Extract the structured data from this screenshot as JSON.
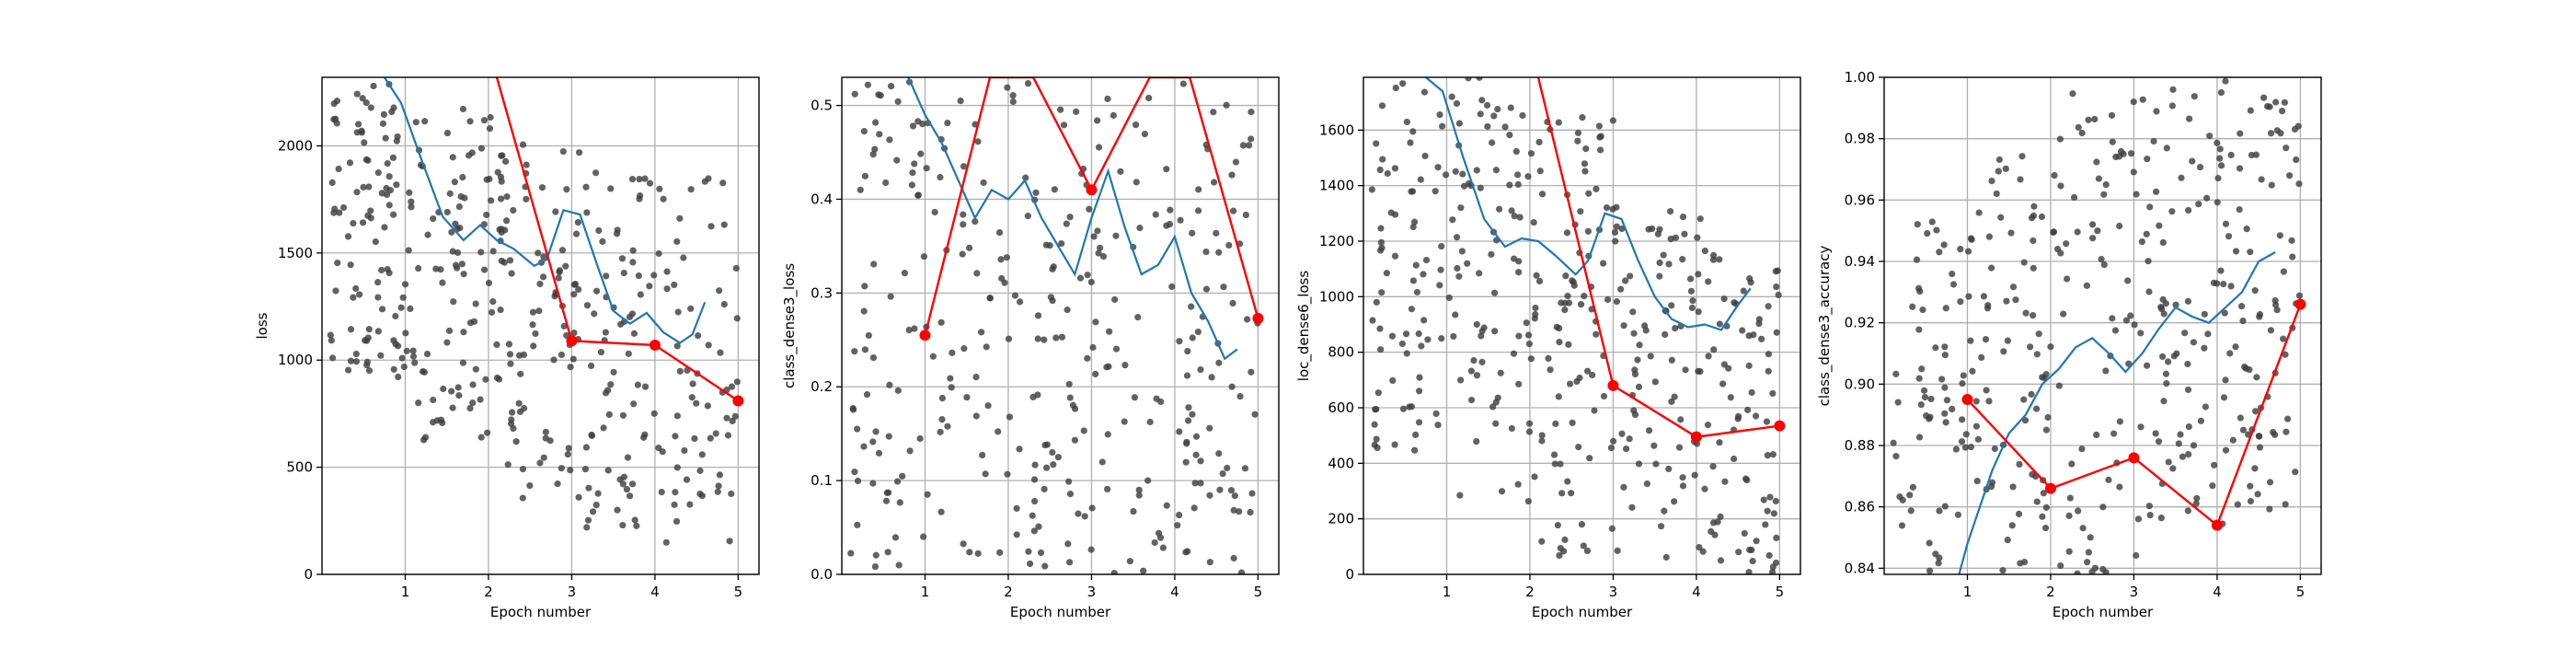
{
  "figure": {
    "background": "#ffffff",
    "colors": {
      "scatter": "#404040",
      "smoothed": "#1f77b4",
      "epoch": "#ff0000",
      "grid": "#b0b0b0",
      "axis": "#000000"
    }
  },
  "chart_data": [
    {
      "type": "line",
      "xlabel": "Epoch number",
      "ylabel": "loss",
      "xlim": [
        0.0,
        5.25
      ],
      "ylim": [
        0,
        2320
      ],
      "xticks": [
        1,
        2,
        3,
        4,
        5
      ],
      "yticks": [
        0,
        500,
        1000,
        1500,
        2000
      ],
      "grid": true,
      "scatter_center": [
        1600,
        1420,
        1180,
        1050,
        1000
      ],
      "scatter_spread": [
        430,
        500,
        520,
        520,
        540
      ],
      "scatter_seed": 11,
      "smoothed": {
        "x": [
          0.75,
          0.95,
          1.2,
          1.45,
          1.7,
          1.9,
          2.1,
          2.3,
          2.55,
          2.7,
          2.9,
          3.1,
          3.3,
          3.5,
          3.7,
          3.9,
          4.1,
          4.3,
          4.45,
          4.6
        ],
        "y": [
          2320,
          2200,
          1930,
          1670,
          1560,
          1630,
          1560,
          1520,
          1440,
          1470,
          1700,
          1680,
          1450,
          1230,
          1170,
          1220,
          1130,
          1080,
          1120,
          1270
        ]
      },
      "epoch_points": {
        "x": [
          2.1,
          3,
          4,
          5
        ],
        "y": [
          2320,
          1090,
          1070,
          810
        ]
      }
    },
    {
      "type": "line",
      "xlabel": "Epoch number",
      "ylabel": "class_dense3_loss",
      "xlim": [
        0.0,
        5.25
      ],
      "ylim": [
        0.0,
        0.53
      ],
      "xticks": [
        1,
        2,
        3,
        4,
        5
      ],
      "yticks": [
        0.0,
        0.1,
        0.2,
        0.3,
        0.4,
        0.5
      ],
      "grid": true,
      "scatter_center": [
        0.3,
        0.31,
        0.3,
        0.28,
        0.27
      ],
      "scatter_spread": [
        0.2,
        0.2,
        0.2,
        0.21,
        0.2
      ],
      "scatter_seed": 23,
      "smoothed": {
        "x": [
          0.8,
          1.0,
          1.2,
          1.4,
          1.6,
          1.8,
          2.0,
          2.2,
          2.4,
          2.6,
          2.8,
          3.0,
          3.2,
          3.4,
          3.6,
          3.8,
          4.0,
          4.2,
          4.4,
          4.6,
          4.75
        ],
        "y": [
          0.53,
          0.49,
          0.46,
          0.42,
          0.38,
          0.41,
          0.4,
          0.42,
          0.38,
          0.35,
          0.32,
          0.38,
          0.43,
          0.37,
          0.32,
          0.33,
          0.36,
          0.3,
          0.27,
          0.23,
          0.24
        ]
      },
      "epoch_points": {
        "x": [
          1,
          1.78,
          2.3,
          3,
          3.7,
          4.18,
          5
        ],
        "y": [
          0.255,
          0.53,
          0.53,
          0.41,
          0.53,
          0.53,
          0.273
        ]
      }
    },
    {
      "type": "line",
      "xlabel": "Epoch number",
      "ylabel": "loc_dense6_loss",
      "xlim": [
        0.0,
        5.25
      ],
      "ylim": [
        0,
        1790
      ],
      "xticks": [
        1,
        2,
        3,
        4,
        5
      ],
      "yticks": [
        0,
        200,
        400,
        600,
        800,
        1000,
        1200,
        1400,
        1600
      ],
      "grid": true,
      "scatter_center": [
        1150,
        1050,
        850,
        650,
        600
      ],
      "scatter_spread": [
        450,
        500,
        500,
        430,
        380
      ],
      "scatter_seed": 37,
      "smoothed": {
        "x": [
          0.75,
          0.95,
          1.2,
          1.45,
          1.7,
          1.9,
          2.1,
          2.3,
          2.55,
          2.7,
          2.9,
          3.1,
          3.3,
          3.5,
          3.7,
          3.9,
          4.1,
          4.3,
          4.5,
          4.65
        ],
        "y": [
          1790,
          1740,
          1500,
          1280,
          1180,
          1210,
          1200,
          1150,
          1080,
          1130,
          1300,
          1280,
          1130,
          1000,
          920,
          890,
          900,
          880,
          970,
          1030
        ]
      },
      "epoch_points": {
        "x": [
          2.1,
          3,
          4,
          5
        ],
        "y": [
          1790,
          680,
          495,
          535
        ]
      }
    },
    {
      "type": "line",
      "xlabel": "Epoch number",
      "ylabel": "class_dense3_accuracy",
      "xlim": [
        0.0,
        5.25
      ],
      "ylim": [
        0.838,
        1.0
      ],
      "xticks": [
        1,
        2,
        3,
        4,
        5
      ],
      "yticks": [
        0.84,
        0.86,
        0.88,
        0.9,
        0.92,
        0.94,
        0.96,
        0.98,
        1.0
      ],
      "grid": true,
      "scatter_center": [
        0.885,
        0.9,
        0.915,
        0.925,
        0.93
      ],
      "scatter_spread": [
        0.045,
        0.05,
        0.05,
        0.045,
        0.045
      ],
      "scatter_seed": 53,
      "smoothed": {
        "x": [
          0.9,
          1.0,
          1.15,
          1.3,
          1.5,
          1.7,
          1.9,
          2.1,
          2.3,
          2.5,
          2.7,
          2.9,
          3.1,
          3.3,
          3.5,
          3.7,
          3.9,
          4.1,
          4.3,
          4.5,
          4.7
        ],
        "y": [
          0.838,
          0.848,
          0.86,
          0.872,
          0.884,
          0.89,
          0.9,
          0.905,
          0.912,
          0.915,
          0.91,
          0.904,
          0.91,
          0.918,
          0.925,
          0.922,
          0.92,
          0.925,
          0.93,
          0.94,
          0.943
        ]
      },
      "epoch_points": {
        "x": [
          1,
          2,
          3,
          4,
          5
        ],
        "y": [
          0.895,
          0.866,
          0.876,
          0.854,
          0.926
        ]
      }
    }
  ]
}
